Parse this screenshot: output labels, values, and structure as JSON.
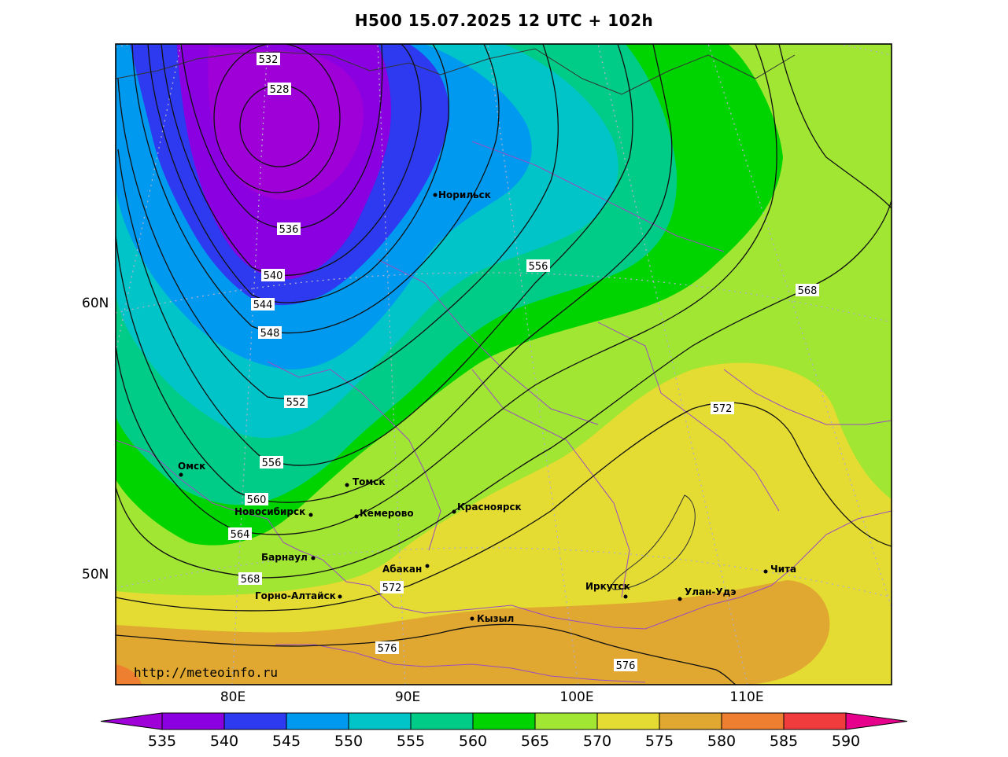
{
  "title": "H500  15.07.2025 12 UTC + 102h",
  "watermark": "http://meteoinfo.ru",
  "axis": {
    "lat_labels": [
      "60N",
      "50N"
    ],
    "lon_labels": [
      "80E",
      "90E",
      "100E",
      "110E"
    ]
  },
  "contours": {
    "labels": [
      "532",
      "528",
      "536",
      "540",
      "544",
      "548",
      "552",
      "556",
      "556",
      "560",
      "564",
      "568",
      "568",
      "572",
      "572",
      "576",
      "576"
    ]
  },
  "cities": [
    {
      "name": "Норильск"
    },
    {
      "name": "Омск"
    },
    {
      "name": "Томск"
    },
    {
      "name": "Новосибирск"
    },
    {
      "name": "Кемерово"
    },
    {
      "name": "Красноярск"
    },
    {
      "name": "Барнаул"
    },
    {
      "name": "Абакан"
    },
    {
      "name": "Горно-Алтайск"
    },
    {
      "name": "Кызыл"
    },
    {
      "name": "Иркутск"
    },
    {
      "name": "Улан-Удэ"
    },
    {
      "name": "Чита"
    }
  ],
  "colorbar": {
    "labels": [
      "535",
      "540",
      "545",
      "550",
      "555",
      "560",
      "565",
      "570",
      "575",
      "580",
      "585",
      "590"
    ],
    "colors": [
      "#9f00d8",
      "#8a00e0",
      "#2d3af0",
      "#0099f0",
      "#00c4c8",
      "#00cc88",
      "#00d400",
      "#a0e632",
      "#e4dc32",
      "#e0a830",
      "#ee7e30",
      "#f03c3c",
      "#e6008c"
    ]
  },
  "colors": {
    "frame": "#000000",
    "contour": "#111111",
    "border": "#9a4dc0",
    "grid": "#b0b0c8"
  }
}
